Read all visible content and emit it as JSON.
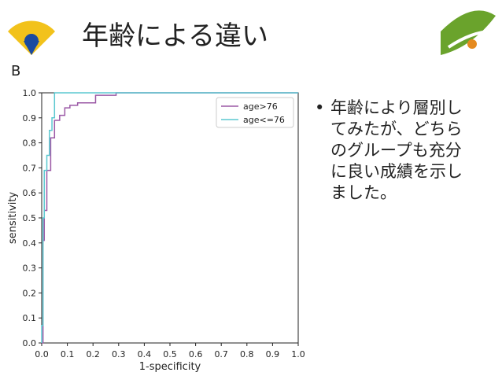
{
  "slide": {
    "title": "年齢による違い",
    "panel_label": "B",
    "bullet": "年齢により層別してみたが、どちらのグループも充分に良い成績を示しました。"
  },
  "chart_data": {
    "type": "line",
    "xlabel": "1-specificity",
    "ylabel": "sensitivity",
    "xlim": [
      0,
      1
    ],
    "ylim": [
      0,
      1
    ],
    "xticks": [
      {
        "value": 0,
        "label": "0.0"
      },
      0.1,
      0.2,
      0.3,
      0.4,
      0.5,
      0.6,
      0.7,
      0.8,
      0.9,
      {
        "value": 1,
        "label": "1.0"
      }
    ],
    "yticks": [
      {
        "value": 0,
        "label": "0.0"
      },
      0.1,
      0.2,
      0.3,
      0.4,
      0.5,
      0.6,
      0.7,
      0.8,
      0.9,
      {
        "value": 1,
        "label": "1.0"
      }
    ],
    "legend": "upper right",
    "series": [
      {
        "name": "age>76",
        "color": "#9b59a6",
        "x": [
          0,
          0.005,
          0.005,
          0.01,
          0.01,
          0.02,
          0.02,
          0.035,
          0.035,
          0.05,
          0.05,
          0.07,
          0.07,
          0.09,
          0.09,
          0.11,
          0.11,
          0.14,
          0.14,
          0.21,
          0.21,
          0.29,
          0.29,
          1.0
        ],
        "values": [
          0,
          0,
          0.41,
          0.41,
          0.53,
          0.53,
          0.69,
          0.69,
          0.82,
          0.82,
          0.89,
          0.89,
          0.91,
          0.91,
          0.94,
          0.94,
          0.95,
          0.95,
          0.96,
          0.96,
          0.99,
          0.99,
          1.0,
          1.0
        ]
      },
      {
        "name": "age<=76",
        "color": "#5bc8d0",
        "x": [
          0,
          0,
          0.005,
          0.005,
          0.01,
          0.01,
          0.02,
          0.02,
          0.03,
          0.03,
          0.04,
          0.04,
          0.05,
          0.05,
          1.0
        ],
        "values": [
          0,
          0.07,
          0.07,
          0.5,
          0.5,
          0.69,
          0.69,
          0.75,
          0.75,
          0.85,
          0.85,
          0.9,
          0.9,
          1.0,
          1.0
        ]
      }
    ]
  }
}
